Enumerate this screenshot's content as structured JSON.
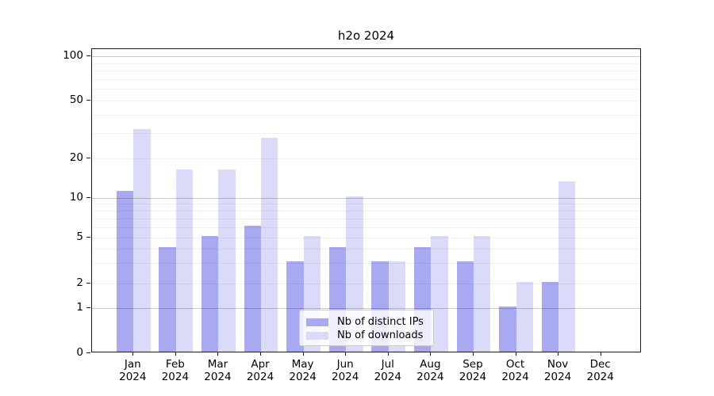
{
  "title": "h2o 2024",
  "legend": {
    "items": [
      {
        "label": "Nb of distinct IPs",
        "color": "#a9a9f2"
      },
      {
        "label": "Nb of downloads",
        "color": "#dadaf9"
      }
    ]
  },
  "chart_data": {
    "type": "bar",
    "title": "h2o 2024",
    "year_label": "2024",
    "categories": [
      "Jan",
      "Feb",
      "Mar",
      "Apr",
      "May",
      "Jun",
      "Jul",
      "Aug",
      "Sep",
      "Oct",
      "Nov",
      "Dec"
    ],
    "series": [
      {
        "name": "Nb of distinct IPs",
        "color": "#a9a9f2",
        "values": [
          11,
          4,
          5,
          6,
          3,
          4,
          3,
          4,
          3,
          1,
          2,
          0
        ]
      },
      {
        "name": "Nb of downloads",
        "color": "#dadaf9",
        "values": [
          31,
          16,
          16,
          27,
          5,
          10,
          3,
          5,
          5,
          2,
          13,
          0
        ]
      }
    ],
    "xlabel": "",
    "ylabel": "",
    "yticks": [
      0,
      1,
      2,
      5,
      10,
      20,
      50,
      100
    ],
    "yscale": "symlog",
    "ylim": [
      0,
      113
    ],
    "grid": true,
    "legend_position": "lower center"
  },
  "colors": {
    "bar_distinct_ips": "#a9a9f2",
    "bar_downloads": "#dadaf9",
    "grid_major": "#cccccc",
    "grid_minor": "#f1f1f1",
    "spine": "#1a1a1a",
    "background": "#ffffff"
  }
}
